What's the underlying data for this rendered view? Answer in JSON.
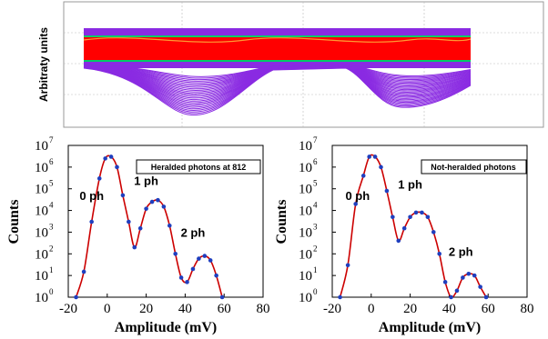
{
  "chart_data": [
    {
      "type": "line",
      "panel": "oscilloscope-traces",
      "ylabel": "Arbitraty units",
      "grid": true,
      "colors": {
        "band": "#ff0000",
        "traces": "#8a2be2",
        "edge": "#00cc66",
        "signal": "#ff9933"
      }
    },
    {
      "type": "scatter",
      "panel": "heralded-histogram",
      "legend": "Heralded photons at 812",
      "xlabel": "Amplitude (mV)",
      "ylabel": "Counts",
      "xlim": [
        -20,
        80
      ],
      "ylim_exp": [
        0,
        7
      ],
      "xticks": [
        "-20",
        "0",
        "20",
        "40",
        "60",
        "80"
      ],
      "yscale": "log",
      "annotations": [
        {
          "text": "0 ph",
          "x": -8,
          "y": 30000
        },
        {
          "text": "1 ph",
          "x": 20,
          "y": 150000
        },
        {
          "text": "2 ph",
          "x": 44,
          "y": 600
        }
      ],
      "x": [
        -16,
        -12,
        -8,
        -4,
        -1,
        2,
        5,
        8,
        11,
        14,
        17,
        20,
        23,
        26,
        29,
        32,
        35,
        38,
        41,
        44,
        47,
        50,
        53,
        56,
        59
      ],
      "y": [
        1,
        15,
        3000,
        300000,
        2500000,
        3000000,
        1000000,
        50000,
        3000,
        200,
        1500,
        12000,
        25000,
        30000,
        15000,
        2000,
        100,
        8,
        5,
        20,
        60,
        80,
        50,
        10,
        1
      ],
      "colors": {
        "points": "#1f3fbf",
        "fit": "#cc0000"
      }
    },
    {
      "type": "scatter",
      "panel": "not-heralded-histogram",
      "legend": "Not-heralded photons",
      "xlabel": "Amplitude (mV)",
      "ylabel": "Counts",
      "xlim": [
        -20,
        80
      ],
      "ylim_exp": [
        0,
        7
      ],
      "xticks": [
        "-20",
        "0",
        "20",
        "40",
        "60",
        "80"
      ],
      "yscale": "log",
      "annotations": [
        {
          "text": "0 ph",
          "x": -7,
          "y": 30000
        },
        {
          "text": "1 ph",
          "x": 20,
          "y": 100000
        },
        {
          "text": "2 ph",
          "x": 46,
          "y": 80
        }
      ],
      "x": [
        -16,
        -12,
        -8,
        -4,
        -1,
        2,
        5,
        8,
        11,
        14,
        17,
        20,
        23,
        26,
        29,
        32,
        35,
        38,
        41,
        44,
        47,
        50,
        53,
        56,
        59
      ],
      "y": [
        1,
        30,
        20000,
        400000,
        3000000,
        3000000,
        1000000,
        80000,
        5000,
        400,
        1500,
        5000,
        8000,
        8000,
        5000,
        1000,
        100,
        5,
        1,
        2,
        8,
        12,
        10,
        3,
        1
      ],
      "colors": {
        "points": "#1f3fbf",
        "fit": "#cc0000"
      }
    }
  ]
}
